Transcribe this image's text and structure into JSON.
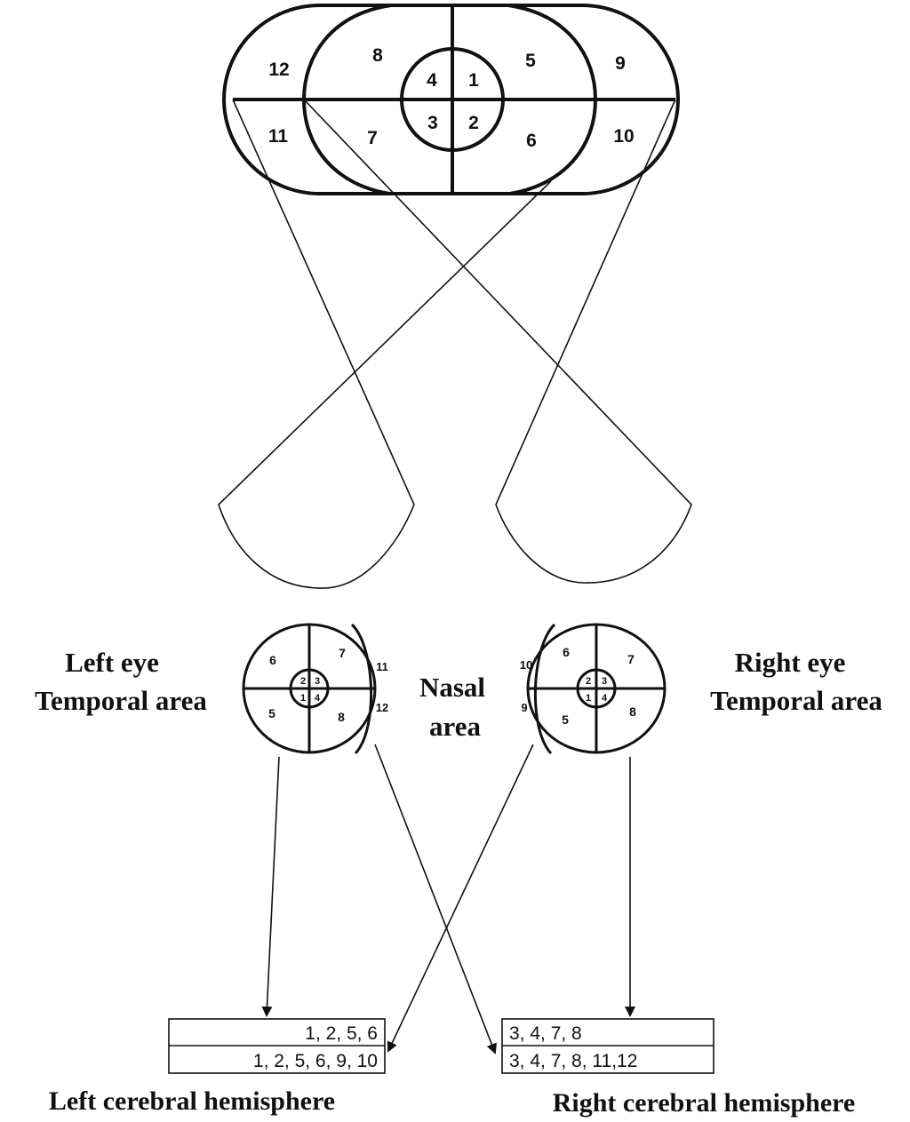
{
  "visual_field": {
    "zones": {
      "z1": "1",
      "z2": "2",
      "z3": "3",
      "z4": "4",
      "z5": "5",
      "z6": "6",
      "z7": "7",
      "z8": "8",
      "z9": "9",
      "z10": "10",
      "z11": "11",
      "z12": "12"
    }
  },
  "labels": {
    "left_eye_line1": "Left eye",
    "left_eye_line2": "Temporal area",
    "nasal_line1": "Nasal",
    "nasal_line2": "area",
    "right_eye_line1": "Right eye",
    "right_eye_line2": "Temporal area",
    "left_hemisphere": "Left cerebral hemisphere",
    "right_hemisphere": "Right cerebral hemisphere"
  },
  "left_eye": {
    "zones": {
      "a": "6",
      "b": "7",
      "c": "11",
      "d": "5",
      "e": "8",
      "f": "12",
      "c2": "2",
      "c3": "3",
      "c1": "1",
      "c4": "4"
    }
  },
  "right_eye": {
    "zones": {
      "a": "10",
      "b": "6",
      "c": "7",
      "d": "9",
      "e": "5",
      "f": "8",
      "c2": "2",
      "c3": "3",
      "c1": "1",
      "c4": "4"
    }
  },
  "left_box": {
    "row1": "1, 2, 5, 6",
    "row2": "1, 2, 5, 6, 9, 10"
  },
  "right_box": {
    "row1": "3, 4, 7, 8",
    "row2": "3, 4, 7, 8, 11,12"
  }
}
